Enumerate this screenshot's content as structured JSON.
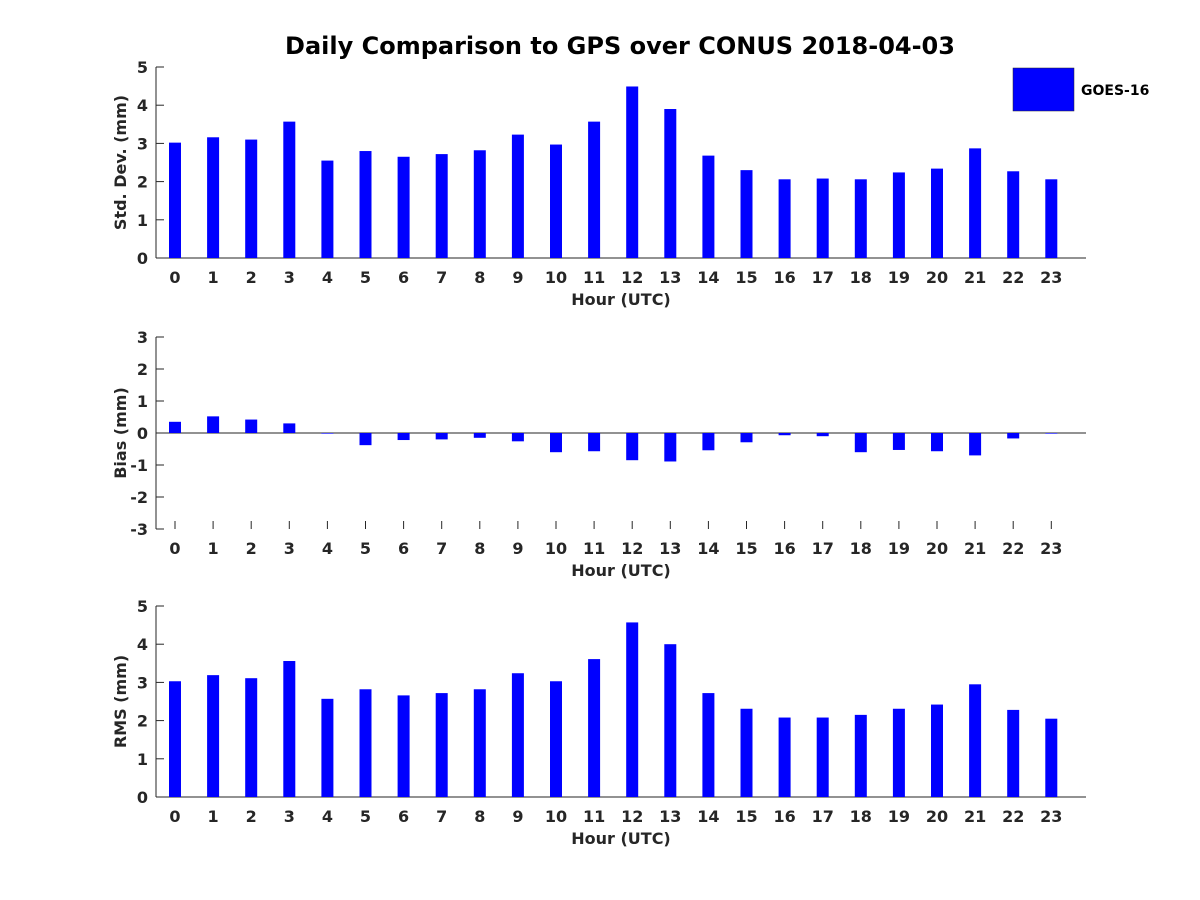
{
  "title": "Daily Comparison to GPS over CONUS 2018-04-03",
  "legend": {
    "label": "GOES-16",
    "color": "#0000ff"
  },
  "chart_data": [
    {
      "type": "bar",
      "name": "std-dev",
      "categories": [
        "0",
        "1",
        "2",
        "3",
        "4",
        "5",
        "6",
        "7",
        "8",
        "9",
        "10",
        "11",
        "12",
        "13",
        "14",
        "15",
        "16",
        "17",
        "18",
        "19",
        "20",
        "21",
        "22",
        "23"
      ],
      "series": [
        {
          "name": "GOES-16",
          "values": [
            3.02,
            3.16,
            3.1,
            3.57,
            2.55,
            2.8,
            2.65,
            2.72,
            2.82,
            3.23,
            2.97,
            3.57,
            4.49,
            3.9,
            2.68,
            2.3,
            2.06,
            2.08,
            2.06,
            2.24,
            2.34,
            2.87,
            2.27,
            2.06
          ]
        }
      ],
      "xlabel": "Hour (UTC)",
      "ylabel": "Std. Dev. (mm)",
      "ylim": [
        0,
        5
      ],
      "yticks": [
        "0",
        "1",
        "2",
        "3",
        "4",
        "5"
      ]
    },
    {
      "type": "bar",
      "name": "bias",
      "categories": [
        "0",
        "1",
        "2",
        "3",
        "4",
        "5",
        "6",
        "7",
        "8",
        "9",
        "10",
        "11",
        "12",
        "13",
        "14",
        "15",
        "16",
        "17",
        "18",
        "19",
        "20",
        "21",
        "22",
        "23"
      ],
      "series": [
        {
          "name": "GOES-16",
          "values": [
            0.35,
            0.52,
            0.42,
            0.3,
            -0.02,
            -0.38,
            -0.22,
            -0.2,
            -0.15,
            -0.26,
            -0.6,
            -0.57,
            -0.85,
            -0.89,
            -0.54,
            -0.29,
            -0.07,
            -0.1,
            -0.6,
            -0.53,
            -0.57,
            -0.7,
            -0.17,
            -0.02
          ]
        }
      ],
      "xlabel": "Hour (UTC)",
      "ylabel": "Bias (mm)",
      "ylim": [
        -3,
        3
      ],
      "yticks": [
        "-3",
        "-2",
        "-1",
        "0",
        "1",
        "2",
        "3"
      ]
    },
    {
      "type": "bar",
      "name": "rms",
      "categories": [
        "0",
        "1",
        "2",
        "3",
        "4",
        "5",
        "6",
        "7",
        "8",
        "9",
        "10",
        "11",
        "12",
        "13",
        "14",
        "15",
        "16",
        "17",
        "18",
        "19",
        "20",
        "21",
        "22",
        "23"
      ],
      "series": [
        {
          "name": "GOES-16",
          "values": [
            3.03,
            3.19,
            3.11,
            3.56,
            2.57,
            2.82,
            2.66,
            2.72,
            2.82,
            3.24,
            3.03,
            3.61,
            4.57,
            4.0,
            2.72,
            2.31,
            2.08,
            2.08,
            2.15,
            2.31,
            2.42,
            2.95,
            2.28,
            2.05
          ]
        }
      ],
      "xlabel": "Hour (UTC)",
      "ylabel": "RMS (mm)",
      "ylim": [
        0,
        5
      ],
      "yticks": [
        "0",
        "1",
        "2",
        "3",
        "4",
        "5"
      ]
    }
  ]
}
